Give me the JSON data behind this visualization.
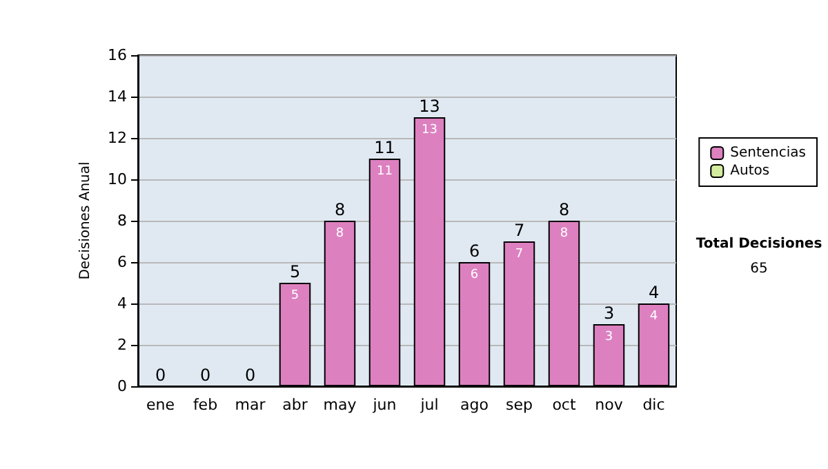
{
  "chart_data": {
    "type": "bar",
    "ylabel": "Decisiones Anual",
    "categories": [
      "ene",
      "feb",
      "mar",
      "abr",
      "may",
      "jun",
      "jul",
      "ago",
      "sep",
      "oct",
      "nov",
      "dic"
    ],
    "series": [
      {
        "name": "Sentencias",
        "color": "#dd80c0",
        "values": [
          0,
          0,
          0,
          5,
          8,
          11,
          13,
          6,
          7,
          8,
          3,
          4
        ],
        "value_labels": [
          null,
          null,
          null,
          "5",
          "8",
          "11",
          "13",
          "6",
          "7",
          "8",
          "3",
          "4"
        ]
      },
      {
        "name": "Autos",
        "color": "#d4eca0",
        "values": [
          null,
          null,
          null,
          null,
          null,
          null,
          null,
          null,
          null,
          null,
          null,
          null
        ]
      }
    ],
    "totals": [
      "0",
      "0",
      "0",
      "5",
      "8",
      "11",
      "13",
      "6",
      "7",
      "8",
      "3",
      "4"
    ],
    "ylim": [
      0,
      16
    ],
    "yticks": [
      0,
      2,
      4,
      6,
      8,
      10,
      12,
      14,
      16
    ],
    "grid": "y",
    "legend": "right",
    "annotations": [
      "Total Decisiones",
      "65"
    ]
  }
}
